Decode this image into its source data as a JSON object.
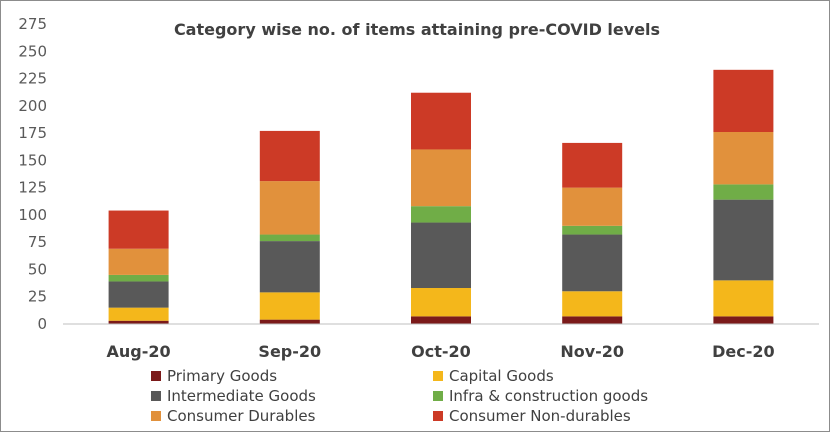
{
  "chart_data": {
    "type": "bar",
    "stacked": true,
    "title": "Category wise no. of items attaining pre-COVID levels",
    "xlabel": "",
    "ylabel": "",
    "ylim": [
      0,
      275
    ],
    "ytick_step": 25,
    "grid": false,
    "legend_position": "bottom",
    "categories": [
      "Aug-20",
      "Sep-20",
      "Oct-20",
      "Nov-20",
      "Dec-20"
    ],
    "series": [
      {
        "name": "Primary Goods",
        "color": "#7b1a1a",
        "values": [
          3,
          4,
          7,
          7,
          7
        ]
      },
      {
        "name": "Capital Goods",
        "color": "#f4b71b",
        "values": [
          12,
          25,
          26,
          23,
          33
        ]
      },
      {
        "name": "Intermediate Goods",
        "color": "#595959",
        "values": [
          24,
          47,
          60,
          52,
          74
        ]
      },
      {
        "name": "Infra & construction goods",
        "color": "#70ad47",
        "values": [
          6,
          6,
          15,
          8,
          14
        ]
      },
      {
        "name": "Consumer Durables",
        "color": "#e1913c",
        "values": [
          24,
          49,
          52,
          35,
          48
        ]
      },
      {
        "name": "Consumer Non-durables",
        "color": "#cc3a26",
        "values": [
          35,
          46,
          52,
          41,
          57
        ]
      }
    ]
  }
}
